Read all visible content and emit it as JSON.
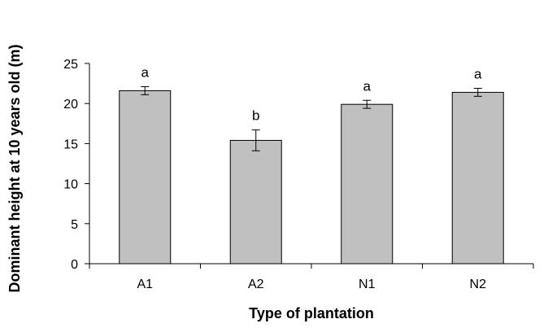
{
  "chart_data": {
    "type": "bar",
    "title": "",
    "xlabel": "Type of plantation",
    "ylabel": "Dominant height at 10 years old (m)",
    "categories": [
      "A1",
      "A2",
      "N1",
      "N2"
    ],
    "values": [
      21.6,
      15.4,
      19.9,
      21.4
    ],
    "error": [
      0.5,
      1.3,
      0.5,
      0.5
    ],
    "significance_labels": [
      "a",
      "b",
      "a",
      "a"
    ],
    "ylim": [
      0,
      25
    ],
    "yticks": [
      0,
      5,
      10,
      15,
      20,
      25
    ],
    "grid": false,
    "legend": "none",
    "bar_color": "#c0c0c0",
    "bar_edge_color": "#000000"
  }
}
